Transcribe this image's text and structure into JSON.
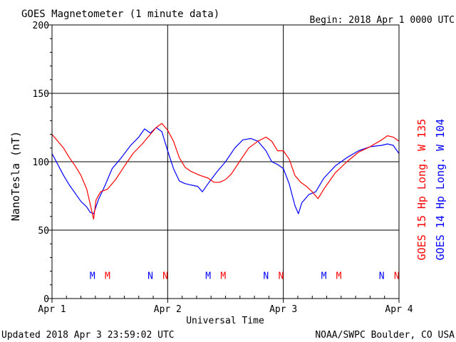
{
  "colors": {
    "goes15": "#ff0000",
    "goes14": "#0000ff",
    "axis": "#000000",
    "background": "#ffffff"
  },
  "header": {
    "title": "GOES Magnetometer (1 minute data)",
    "begin": "Begin:  2018 Apr 1 0000 UTC"
  },
  "footer": {
    "updated": "Updated 2018 Apr  3 23:59:02 UTC",
    "credit": "NOAA/SWPC Boulder, CO USA"
  },
  "chart_data": {
    "type": "line",
    "ylabel": "NanoTesla (nT)",
    "xlabel": "Universal Time",
    "ylim": [
      0,
      200
    ],
    "yticks": [
      0,
      50,
      100,
      150,
      200
    ],
    "xlim_days": [
      0,
      3
    ],
    "xticks": [
      {
        "day": 0,
        "label": "Apr 1"
      },
      {
        "day": 1,
        "label": "Apr 2"
      },
      {
        "day": 2,
        "label": "Apr 3"
      },
      {
        "day": 3,
        "label": "Apr 4"
      }
    ],
    "grid": true,
    "series": [
      {
        "name": "GOES 15 Hp  Long. W 135",
        "color": "#ff0000",
        "points": [
          [
            0.0,
            120
          ],
          [
            0.05,
            115
          ],
          [
            0.1,
            110
          ],
          [
            0.15,
            103
          ],
          [
            0.2,
            97
          ],
          [
            0.25,
            90
          ],
          [
            0.3,
            80
          ],
          [
            0.33,
            69
          ],
          [
            0.36,
            58
          ],
          [
            0.38,
            72
          ],
          [
            0.42,
            78
          ],
          [
            0.48,
            80
          ],
          [
            0.55,
            87
          ],
          [
            0.62,
            96
          ],
          [
            0.7,
            106
          ],
          [
            0.78,
            113
          ],
          [
            0.85,
            120
          ],
          [
            0.9,
            125
          ],
          [
            0.95,
            128
          ],
          [
            1.0,
            123
          ],
          [
            1.05,
            115
          ],
          [
            1.1,
            103
          ],
          [
            1.15,
            96
          ],
          [
            1.2,
            93
          ],
          [
            1.28,
            90
          ],
          [
            1.35,
            88
          ],
          [
            1.4,
            85
          ],
          [
            1.45,
            85
          ],
          [
            1.5,
            87
          ],
          [
            1.55,
            91
          ],
          [
            1.62,
            100
          ],
          [
            1.7,
            110
          ],
          [
            1.78,
            115
          ],
          [
            1.85,
            118
          ],
          [
            1.9,
            115
          ],
          [
            1.95,
            108
          ],
          [
            2.0,
            108
          ],
          [
            2.05,
            102
          ],
          [
            2.1,
            90
          ],
          [
            2.15,
            85
          ],
          [
            2.2,
            82
          ],
          [
            2.25,
            78
          ],
          [
            2.3,
            73
          ],
          [
            2.35,
            80
          ],
          [
            2.45,
            92
          ],
          [
            2.55,
            100
          ],
          [
            2.65,
            107
          ],
          [
            2.75,
            111
          ],
          [
            2.85,
            116
          ],
          [
            2.9,
            119
          ],
          [
            2.95,
            118
          ],
          [
            3.0,
            115
          ]
        ]
      },
      {
        "name": "GOES 14 Hp  Long. W 104",
        "color": "#0000ff",
        "points": [
          [
            0.0,
            106
          ],
          [
            0.05,
            98
          ],
          [
            0.1,
            90
          ],
          [
            0.15,
            83
          ],
          [
            0.2,
            77
          ],
          [
            0.25,
            71
          ],
          [
            0.3,
            67
          ],
          [
            0.33,
            63
          ],
          [
            0.36,
            62
          ],
          [
            0.4,
            72
          ],
          [
            0.46,
            83
          ],
          [
            0.52,
            95
          ],
          [
            0.6,
            103
          ],
          [
            0.68,
            112
          ],
          [
            0.75,
            118
          ],
          [
            0.8,
            124
          ],
          [
            0.85,
            121
          ],
          [
            0.9,
            125
          ],
          [
            0.95,
            122
          ],
          [
            1.0,
            108
          ],
          [
            1.05,
            95
          ],
          [
            1.1,
            86
          ],
          [
            1.15,
            84
          ],
          [
            1.2,
            83
          ],
          [
            1.26,
            82
          ],
          [
            1.3,
            78
          ],
          [
            1.35,
            84
          ],
          [
            1.42,
            92
          ],
          [
            1.5,
            100
          ],
          [
            1.58,
            110
          ],
          [
            1.65,
            116
          ],
          [
            1.72,
            117
          ],
          [
            1.78,
            115
          ],
          [
            1.85,
            108
          ],
          [
            1.9,
            100
          ],
          [
            1.95,
            98
          ],
          [
            2.0,
            95
          ],
          [
            2.05,
            84
          ],
          [
            2.1,
            68
          ],
          [
            2.13,
            62
          ],
          [
            2.16,
            70
          ],
          [
            2.22,
            76
          ],
          [
            2.28,
            78
          ],
          [
            2.35,
            88
          ],
          [
            2.45,
            97
          ],
          [
            2.55,
            103
          ],
          [
            2.65,
            108
          ],
          [
            2.75,
            111
          ],
          [
            2.85,
            112
          ],
          [
            2.9,
            113
          ],
          [
            2.95,
            112
          ],
          [
            3.0,
            106
          ]
        ]
      }
    ],
    "annotations": [
      {
        "label": "M",
        "day": 0.35,
        "color": "#0000ff"
      },
      {
        "label": "M",
        "day": 0.48,
        "color": "#ff0000"
      },
      {
        "label": "N",
        "day": 0.85,
        "color": "#0000ff"
      },
      {
        "label": "N",
        "day": 0.98,
        "color": "#ff0000"
      },
      {
        "label": "M",
        "day": 1.35,
        "color": "#0000ff"
      },
      {
        "label": "M",
        "day": 1.48,
        "color": "#ff0000"
      },
      {
        "label": "N",
        "day": 1.85,
        "color": "#0000ff"
      },
      {
        "label": "N",
        "day": 1.98,
        "color": "#ff0000"
      },
      {
        "label": "M",
        "day": 2.35,
        "color": "#0000ff"
      },
      {
        "label": "M",
        "day": 2.48,
        "color": "#ff0000"
      },
      {
        "label": "N",
        "day": 2.85,
        "color": "#0000ff"
      },
      {
        "label": "N",
        "day": 2.98,
        "color": "#ff0000"
      }
    ],
    "annotation_level_nT": 17
  }
}
